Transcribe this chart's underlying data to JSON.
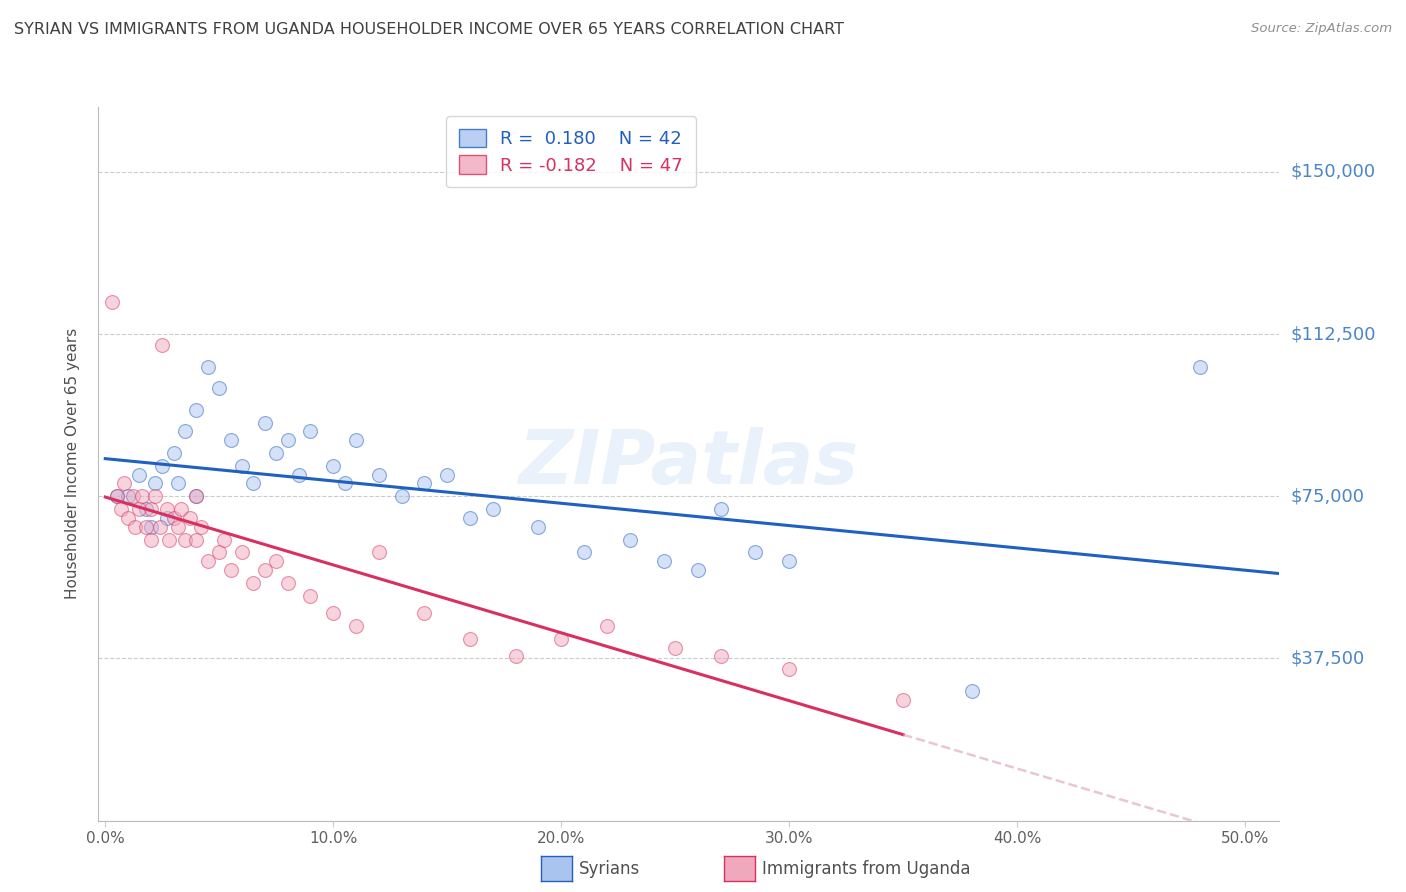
{
  "title": "SYRIAN VS IMMIGRANTS FROM UGANDA HOUSEHOLDER INCOME OVER 65 YEARS CORRELATION CHART",
  "source": "Source: ZipAtlas.com",
  "ylabel": "Householder Income Over 65 years",
  "yticks": [
    0,
    37500,
    75000,
    112500,
    150000
  ],
  "ytick_labels": [
    "",
    "$37,500",
    "$75,000",
    "$112,500",
    "$150,000"
  ],
  "ymin": 0,
  "ymax": 165000,
  "xmin": -0.003,
  "xmax": 0.515,
  "watermark": "ZIPatlas",
  "legend_syrian_R": "0.180",
  "legend_syrian_N": "42",
  "legend_uganda_R": "-0.182",
  "legend_uganda_N": "47",
  "color_syrian": "#aac4f0",
  "color_uganda": "#f0a8bc",
  "color_line_syrian": "#2060c0",
  "color_line_uganda": "#d83060",
  "color_line_uganda_ext": "#e0a8bc",
  "color_ytick_labels": "#4a86c8",
  "color_title": "#404040",
  "color_source": "#909090",
  "background_color": "#ffffff",
  "syrian_x": [
    0.005,
    0.01,
    0.015,
    0.018,
    0.02,
    0.022,
    0.025,
    0.027,
    0.03,
    0.032,
    0.035,
    0.04,
    0.04,
    0.045,
    0.05,
    0.055,
    0.06,
    0.065,
    0.07,
    0.075,
    0.08,
    0.085,
    0.09,
    0.1,
    0.105,
    0.11,
    0.12,
    0.13,
    0.14,
    0.15,
    0.16,
    0.17,
    0.19,
    0.21,
    0.23,
    0.245,
    0.26,
    0.27,
    0.285,
    0.3,
    0.38,
    0.48
  ],
  "syrian_y": [
    75000,
    75000,
    80000,
    72000,
    68000,
    78000,
    82000,
    70000,
    85000,
    78000,
    90000,
    95000,
    75000,
    105000,
    100000,
    88000,
    82000,
    78000,
    92000,
    85000,
    88000,
    80000,
    90000,
    82000,
    78000,
    88000,
    80000,
    75000,
    78000,
    80000,
    70000,
    72000,
    68000,
    62000,
    65000,
    60000,
    58000,
    72000,
    62000,
    60000,
    30000,
    105000
  ],
  "uganda_x": [
    0.003,
    0.005,
    0.007,
    0.008,
    0.01,
    0.012,
    0.013,
    0.015,
    0.016,
    0.018,
    0.02,
    0.02,
    0.022,
    0.024,
    0.025,
    0.027,
    0.028,
    0.03,
    0.032,
    0.033,
    0.035,
    0.037,
    0.04,
    0.04,
    0.042,
    0.045,
    0.05,
    0.052,
    0.055,
    0.06,
    0.065,
    0.07,
    0.075,
    0.08,
    0.09,
    0.1,
    0.11,
    0.12,
    0.14,
    0.16,
    0.18,
    0.2,
    0.22,
    0.25,
    0.27,
    0.3,
    0.35
  ],
  "uganda_y": [
    120000,
    75000,
    72000,
    78000,
    70000,
    75000,
    68000,
    72000,
    75000,
    68000,
    72000,
    65000,
    75000,
    68000,
    110000,
    72000,
    65000,
    70000,
    68000,
    72000,
    65000,
    70000,
    75000,
    65000,
    68000,
    60000,
    62000,
    65000,
    58000,
    62000,
    55000,
    58000,
    60000,
    55000,
    52000,
    48000,
    45000,
    62000,
    48000,
    42000,
    38000,
    42000,
    45000,
    40000,
    38000,
    35000,
    28000
  ],
  "marker_size": 100,
  "marker_alpha": 0.5,
  "dpi": 100
}
